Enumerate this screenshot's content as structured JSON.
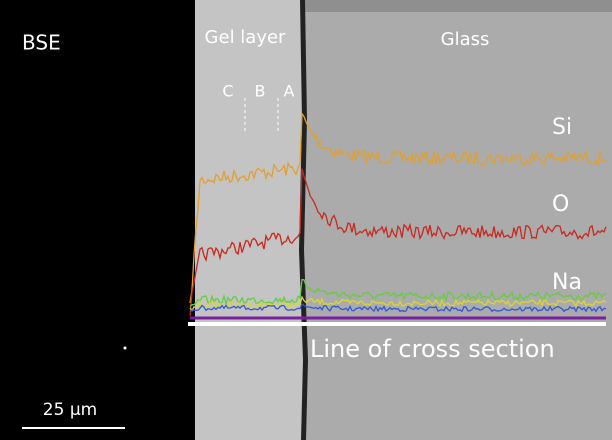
{
  "image_label": "BSE",
  "regions": {
    "gel": "Gel layer",
    "glass": "Glass"
  },
  "sublayers": [
    "C",
    "B",
    "A"
  ],
  "elements": [
    "Si",
    "O",
    "Na"
  ],
  "line_label": "Line of cross section",
  "scale_bar": "25 µm"
}
